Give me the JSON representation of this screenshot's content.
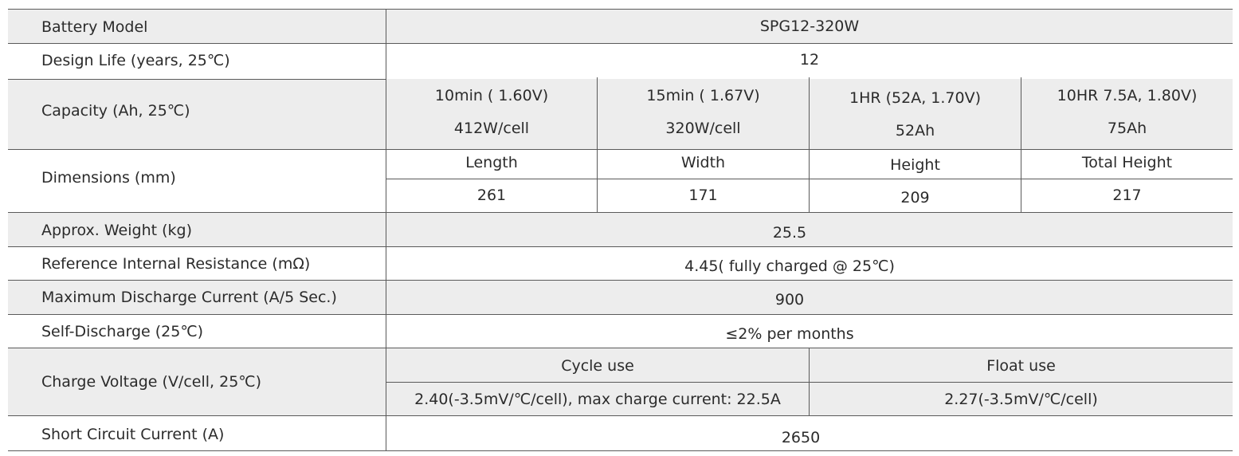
{
  "rows": {
    "model": {
      "label": "Battery Model",
      "value": "SPG12-320W"
    },
    "life": {
      "label": "Design Life (years, 25℃)",
      "value": "12"
    },
    "capacity": {
      "label": "Capacity (Ah, 25℃)",
      "cols": [
        {
          "rate": "10min ( 1.60V)",
          "value": "412W/cell"
        },
        {
          "rate": "15min ( 1.67V)",
          "value": "320W/cell"
        },
        {
          "rate": "1HR (52A, 1.70V)",
          "value": "52Ah"
        },
        {
          "rate": "10HR 7.5A, 1.80V)",
          "value": "75Ah"
        }
      ]
    },
    "dimensions": {
      "label": "Dimensions (mm)",
      "cols": [
        {
          "name": "Length",
          "value": "261"
        },
        {
          "name": "Width",
          "value": "171"
        },
        {
          "name": "Height",
          "value": "209"
        },
        {
          "name": "Total Height",
          "value": "217"
        }
      ]
    },
    "weight": {
      "label": "Approx. Weight (kg)",
      "value": "25.5"
    },
    "resistance": {
      "label": "Reference Internal Resistance (mΩ)",
      "value": "4.45( fully charged @ 25℃)"
    },
    "max_discharge": {
      "label": "Maximum Discharge Current (A/5 Sec.)",
      "value": "900"
    },
    "self_discharge": {
      "label": "Self-Discharge (25℃)",
      "value": "≤2% per months"
    },
    "charge_voltage": {
      "label": "Charge Voltage (V/cell, 25℃)",
      "cycle": {
        "name": "Cycle use",
        "value": "2.40(-3.5mV/℃/cell), max charge current: 22.5A"
      },
      "float": {
        "name": "Float use",
        "value": "2.27(-3.5mV/℃/cell)"
      }
    },
    "short_circuit": {
      "label": "Short Circuit Current (A)",
      "value": "2650"
    }
  }
}
